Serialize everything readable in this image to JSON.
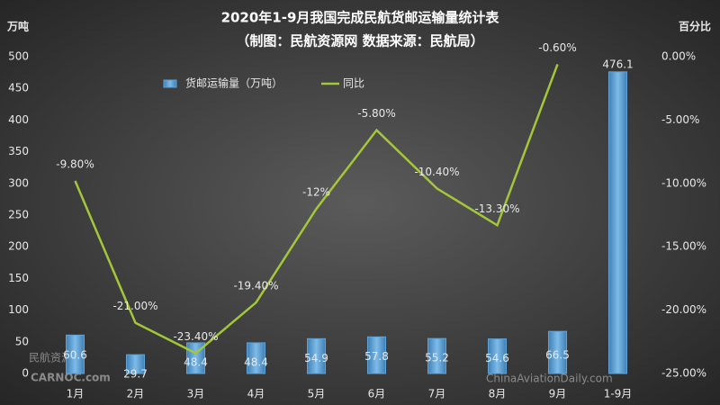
{
  "chart_data": {
    "type": "bar-line",
    "title": "2020年1-9月我国完成民航货邮运输量统计表",
    "subtitle": "（制图：民航资源网  数据来源：民航局）",
    "y_axis_label": "万吨",
    "y2_axis_label": "百分比",
    "categories": [
      "1月",
      "2月",
      "3月",
      "4月",
      "5月",
      "6月",
      "7月",
      "8月",
      "9月",
      "1-9月"
    ],
    "series": [
      {
        "name": "货邮运输量（万吨）",
        "type": "bar",
        "color": "#5fa3d6",
        "values": [
          60.6,
          29.7,
          48.4,
          48.4,
          54.9,
          57.8,
          55.2,
          54.6,
          66.5,
          476.1
        ]
      },
      {
        "name": "同比",
        "type": "line",
        "axis": "y2",
        "color": "#a4c639",
        "values": [
          -9.8,
          -21.0,
          -23.4,
          -19.4,
          -12,
          -5.8,
          -10.4,
          -13.3,
          -0.6,
          null
        ],
        "value_labels": [
          "-9.80%",
          "-21.00%",
          "-23.40%",
          "-19.40%",
          "-12%",
          "-5.80%",
          "-10.40%",
          "-13.30%",
          "-0.60%",
          null
        ]
      }
    ],
    "ylim": [
      0,
      500
    ],
    "yticks": [
      0,
      50,
      100,
      150,
      200,
      250,
      300,
      350,
      400,
      450,
      500
    ],
    "y2lim": [
      -25,
      0
    ],
    "y2ticks": [
      {
        "value": -25,
        "label": "-25.00%"
      },
      {
        "value": -20,
        "label": "-20.00%"
      },
      {
        "value": -15,
        "label": "-15.00%"
      },
      {
        "value": -10,
        "label": "-10.00%"
      },
      {
        "value": -5,
        "label": "-5.00%"
      },
      {
        "value": 0,
        "label": "0.00%"
      }
    ],
    "watermarks": [
      "民航资源网",
      "CARNOC.com",
      "ChinaAviationDaily.com"
    ]
  }
}
